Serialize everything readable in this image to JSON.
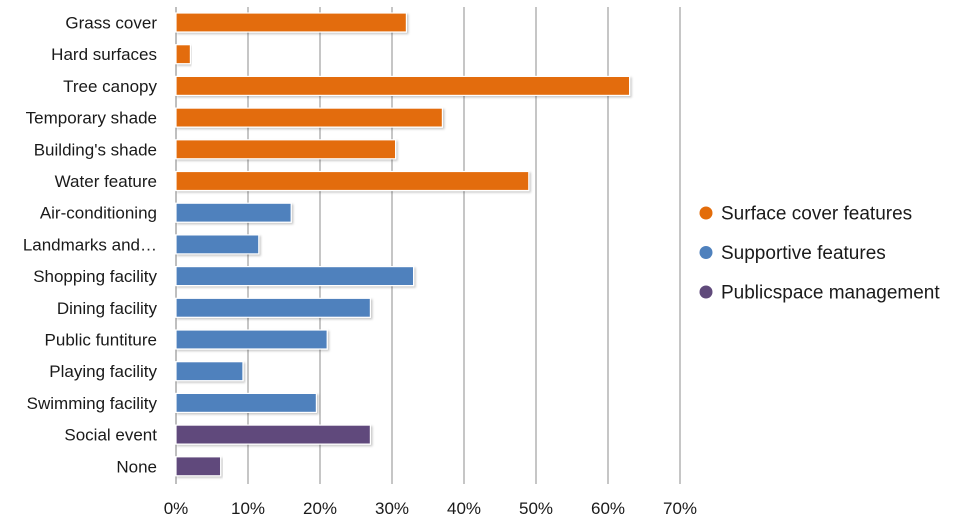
{
  "chart_data": {
    "type": "bar",
    "orientation": "horizontal",
    "categories": [
      "Grass cover",
      "Hard surfaces",
      "Tree canopy",
      "Temporary shade",
      "Building's shade",
      "Water feature",
      "Air-conditioning",
      "Landmarks and…",
      "Shopping facility",
      "Dining facility",
      "Public funtiture",
      "Playing facility",
      "Swimming facility",
      "Social event",
      "None"
    ],
    "values": [
      32,
      2,
      63,
      37,
      30.5,
      49,
      16,
      11.5,
      33,
      27,
      21,
      9.3,
      19.5,
      27,
      6.2
    ],
    "groups": [
      0,
      0,
      0,
      0,
      0,
      0,
      1,
      1,
      1,
      1,
      1,
      1,
      1,
      2,
      2
    ],
    "series": [
      {
        "name": "Surface cover features",
        "color": "#e36c0a"
      },
      {
        "name": "Supportive features",
        "color": "#4f81bd"
      },
      {
        "name": "Publicspace management",
        "color": "#604a7b"
      }
    ],
    "xlim": [
      0,
      70
    ],
    "xticks": [
      0,
      10,
      20,
      30,
      40,
      50,
      60,
      70
    ],
    "tick_format": "percent",
    "grid": "vertical",
    "legend_position": "right",
    "title": "",
    "xlabel": "",
    "ylabel": ""
  }
}
